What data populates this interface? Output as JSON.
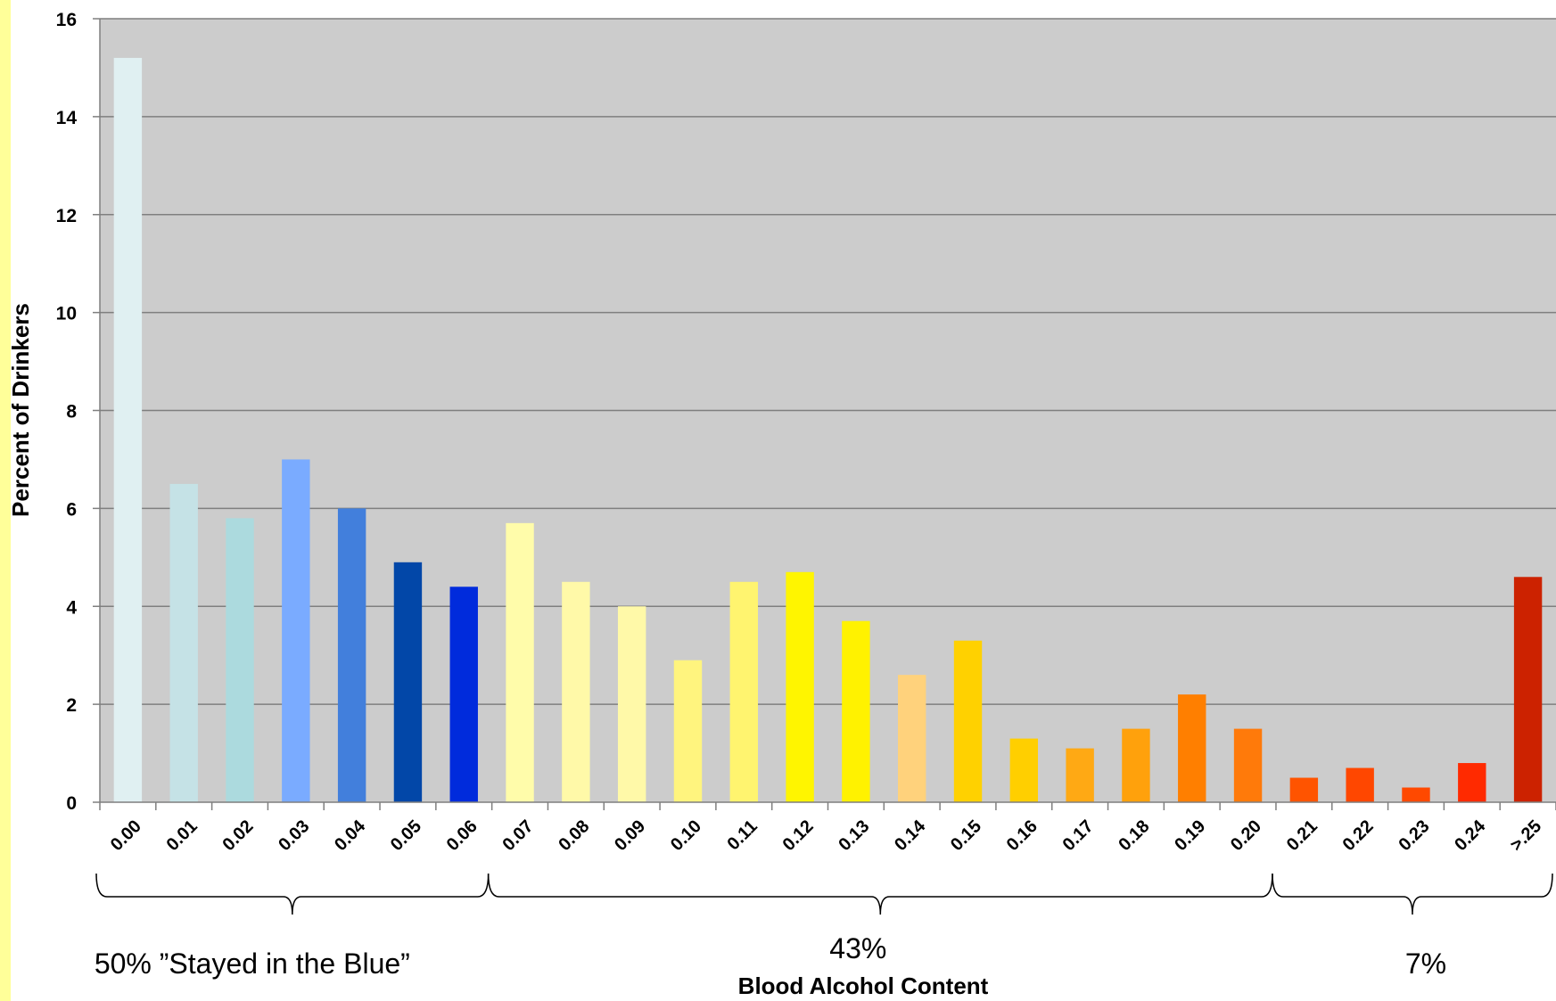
{
  "chart_data": {
    "type": "bar",
    "xlabel": "Blood Alcohol Content",
    "ylabel": "Percent of Drinkers",
    "ylim": [
      0,
      16
    ],
    "yticks": [
      0,
      2,
      4,
      6,
      8,
      10,
      12,
      14,
      16
    ],
    "grid": true,
    "categories": [
      "0.00",
      "0.01",
      "0.02",
      "0.03",
      "0.04",
      "0.05",
      "0.06",
      "0.07",
      "0.08",
      "0.09",
      "0.10",
      "0.11",
      "0.12",
      "0.13",
      "0.14",
      "0.15",
      "0.16",
      "0.17",
      "0.18",
      "0.19",
      "0.20",
      "0.21",
      "0.22",
      "0.23",
      "0.24",
      ">.25"
    ],
    "values": [
      15.2,
      6.5,
      5.8,
      7.0,
      6.0,
      4.9,
      4.4,
      5.7,
      4.5,
      4.0,
      2.9,
      4.5,
      4.7,
      3.7,
      2.6,
      3.3,
      1.3,
      1.1,
      1.5,
      2.2,
      1.5,
      0.5,
      0.7,
      0.3,
      0.8,
      4.6
    ],
    "colors": [
      "#e0f0f2",
      "#c5e2e6",
      "#acdade",
      "#7aabff",
      "#427fdc",
      "#0247a8",
      "#002bdc",
      "#fffcaa",
      "#fff9a8",
      "#fff9a8",
      "#fff47e",
      "#fff46f",
      "#fff500",
      "#fff200",
      "#ffd27c",
      "#ffd100",
      "#ffcf00",
      "#ffa914",
      "#ffa10c",
      "#ff7f00",
      "#ff7a0a",
      "#ff5400",
      "#ff4700",
      "#ff4900",
      "#ff2a00",
      "#cc2200"
    ],
    "annotations": [
      {
        "text": "50% ”Stayed in the Blue”",
        "from": 0,
        "to": 6
      },
      {
        "text": "43%",
        "from": 7,
        "to": 20
      },
      {
        "text": "7%",
        "from": 21,
        "to": 25
      }
    ],
    "plot_background": "#cccccc",
    "page_accent": "#ffff99"
  }
}
